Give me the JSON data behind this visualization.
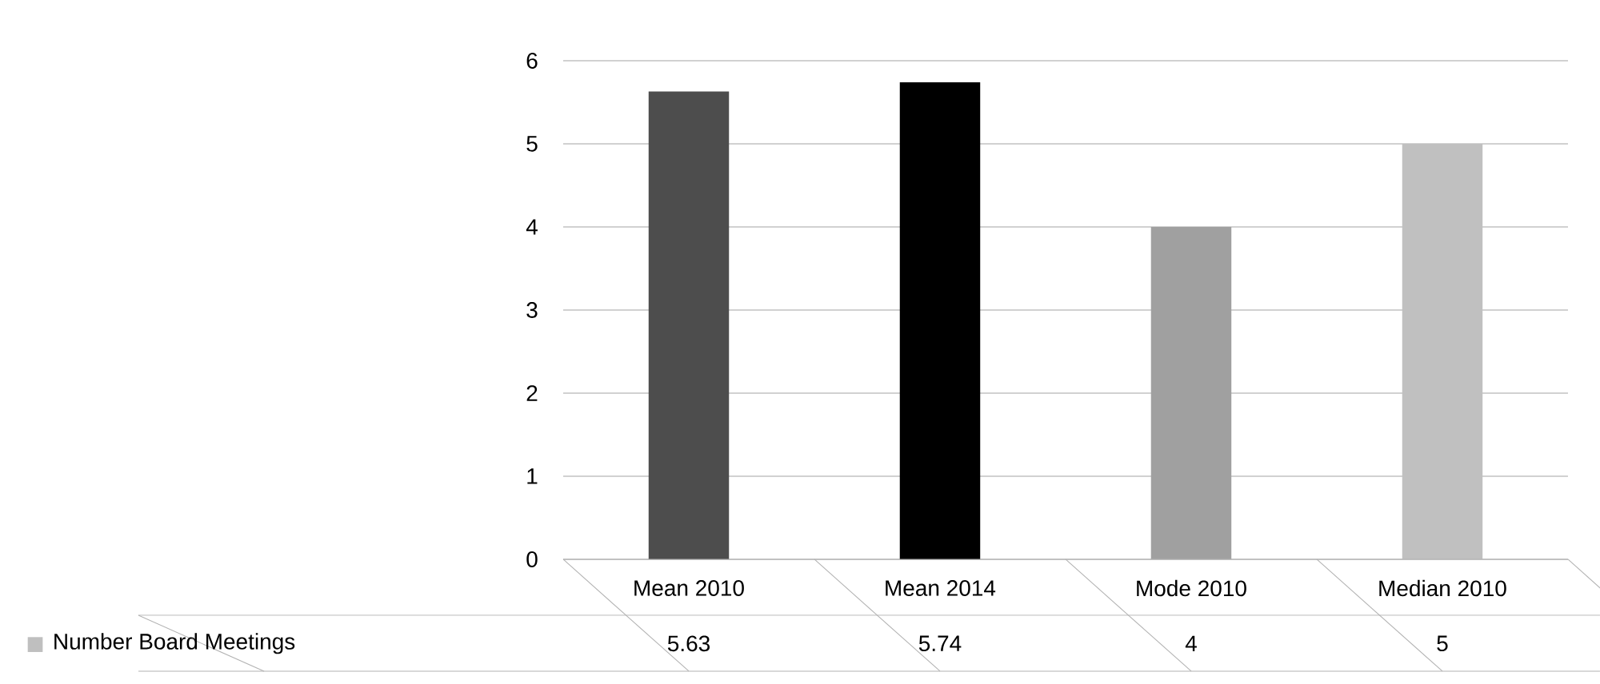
{
  "chart_data": {
    "type": "bar",
    "categories": [
      "Mean 2010",
      "Mean 2014",
      "Mode  2010",
      "Median  2010"
    ],
    "series": [
      {
        "name": "Number  Board Meetings",
        "values": [
          5.63,
          5.74,
          4,
          5
        ],
        "colors": [
          "#4d4d4d",
          "#000000",
          "#a0a0a0",
          "#c0c0c0"
        ],
        "color": "#bfbfbf"
      }
    ],
    "ylim": [
      0,
      6
    ],
    "yticks": [
      0,
      1,
      2,
      3,
      4,
      5,
      6
    ],
    "grid": "y",
    "legend": "bottom",
    "data_labels": true
  }
}
